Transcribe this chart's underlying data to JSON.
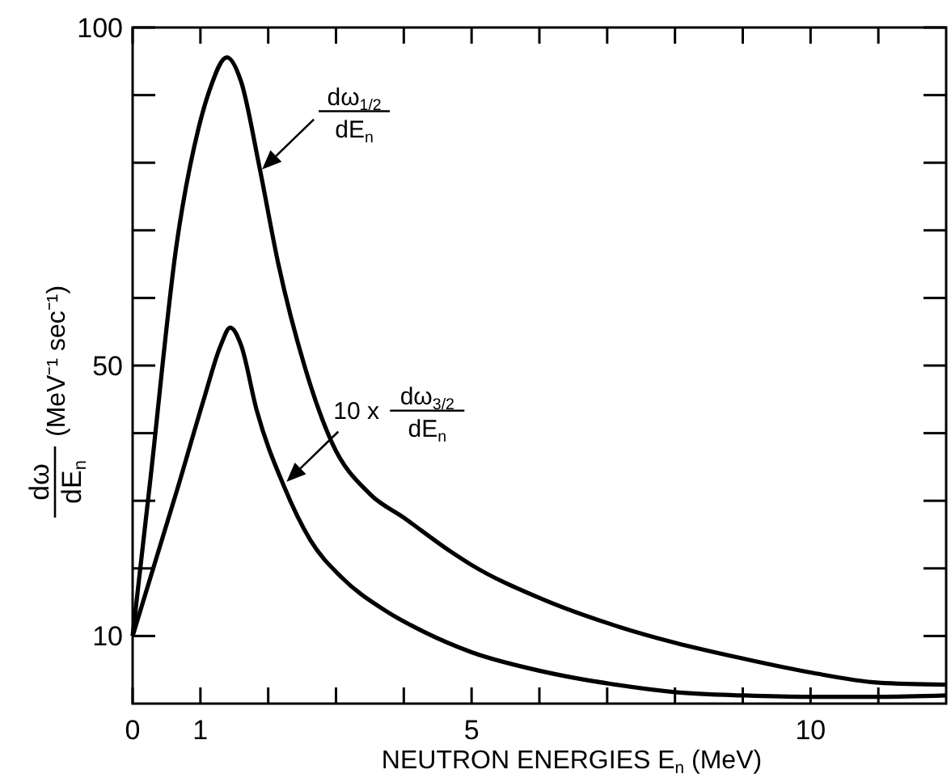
{
  "chart_data": {
    "type": "line",
    "xlabel": "NEUTRON ENERGIES E$_{n}$ (MeV)",
    "ylabel": "dω dE$_{n}$ (MeV⁻¹ sec⁻¹)",
    "xlim": [
      0,
      12
    ],
    "ylim": [
      0,
      100
    ],
    "xticks": [
      {
        "value": 0,
        "label": "0"
      },
      1,
      {
        "value": 2,
        "label": null
      },
      {
        "value": 3,
        "label": null
      },
      {
        "value": 4,
        "label": null
      },
      5,
      {
        "value": 6,
        "label": null
      },
      {
        "value": 7,
        "label": null
      },
      {
        "value": 8,
        "label": null
      },
      {
        "value": 9,
        "label": null
      },
      10,
      {
        "value": 11,
        "label": null
      }
    ],
    "yticks": [
      10,
      {
        "value": 20,
        "label": null
      },
      {
        "value": 30,
        "label": null
      },
      {
        "value": 40,
        "label": null
      },
      50,
      {
        "value": 60,
        "label": null
      },
      {
        "value": 70,
        "label": null
      },
      {
        "value": 80,
        "label": null
      },
      {
        "value": 90,
        "label": null
      },
      100
    ],
    "grid": false,
    "line_style": "solid",
    "marker": "none",
    "series": [
      {
        "color": "#000000",
        "x": [
          0,
          0.26,
          0.65,
          0.97,
          1.13,
          1.39,
          1.6,
          1.87,
          2.15,
          2.54,
          2.94,
          3.5,
          4,
          4.69,
          5,
          6.03,
          7.13,
          8,
          9.03,
          10,
          11,
          12
        ],
        "values": [
          10,
          33,
          68,
          85,
          90.6,
          95.6,
          92,
          79.4,
          65,
          49.8,
          38.6,
          31,
          27.5,
          22.5,
          20.5,
          15.5,
          11.5,
          9,
          6.6,
          4.6,
          3.1,
          2.8
        ]
      },
      {
        "color": "#000000",
        "x": [
          0,
          0.65,
          1.05,
          1.3,
          1.44,
          1.6,
          1.83,
          2.23,
          2.62,
          3.09,
          3.72,
          4.3,
          5,
          6.03,
          7.06,
          8,
          9.03,
          10,
          11,
          12
        ],
        "values": [
          10,
          31.4,
          45,
          53,
          55.6,
          53,
          43.4,
          32.2,
          24.2,
          18.6,
          13.8,
          10.6,
          7.6,
          4.8,
          2.9,
          1.7,
          1.2,
          1,
          1,
          1.2
        ]
      }
    ],
    "annotations": [
      {
        "text": "dω$_{1/2}$ dE$_{n}$",
        "x": 1.91,
        "y": 79
      },
      {
        "text": "10 x dω$_{3/2}$ dE$_{n}$",
        "x": 2.27,
        "y": 32.8
      }
    ]
  }
}
